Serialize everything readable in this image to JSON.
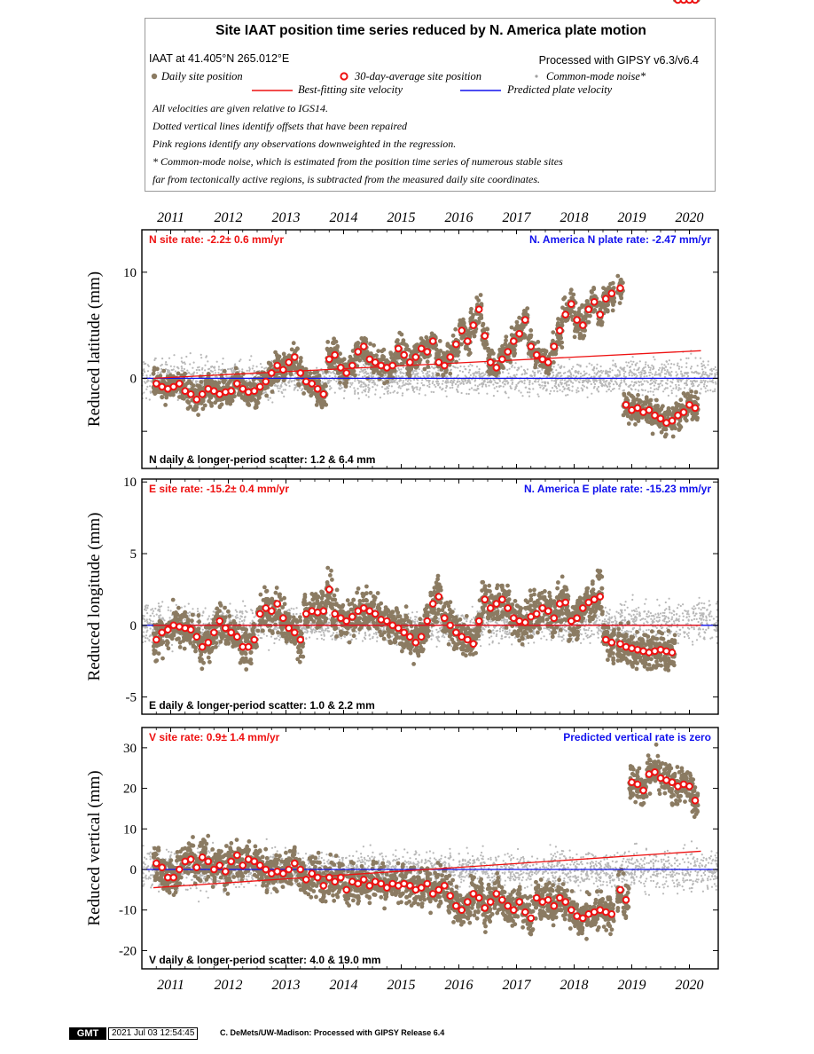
{
  "legend": {
    "title": "Site IAAT position time series reduced by N. America plate motion",
    "location": "IAAT at 41.405°N 265.012°E",
    "processed": "Processed with GIPSY v6.3/v6.4",
    "daily_label": "Daily site position",
    "avg_label": "30-day-average site position",
    "cm_label": "Common-mode noise*",
    "best_label": "Best-fitting site velocity",
    "pred_label": "Predicted plate velocity",
    "note1": "All velocities are given relative to IGS14.",
    "note2": "Dotted vertical lines identify offsets that have been repaired",
    "note3": "Pink regions identify any observations downweighted in the regression.",
    "note4": "* Common-mode noise, which is estimated from the position time series of numerous stable sites",
    "note5": "far from tectonically active regions, is subtracted from the measured daily site coordinates."
  },
  "colors": {
    "daily": "#8b7b62",
    "avg_fill": "#ffffff",
    "avg_edge": "#ee1111",
    "common_mode": "#b8b8b8",
    "best_fit": "#ee1111",
    "plate": "#1111ee",
    "rate_red": "#ee1111",
    "rate_blue": "#1111ee"
  },
  "footer": {
    "logo": "GMT",
    "timestamp": "2021 Jul 03 12:54:45",
    "credit": "C. DeMets/UW-Madison: Processed with GIPSY Release 6.4"
  },
  "chart_data": [
    {
      "type": "scatter",
      "component": "N",
      "ylabel": "Reduced latitude (mm)",
      "xlim": [
        2010.5,
        2020.5
      ],
      "ylim": [
        -8.5,
        14
      ],
      "yticks": [
        -5,
        0,
        10
      ],
      "ytick_labels": [
        "",
        "0",
        "10"
      ],
      "x_ticks": [
        "2011",
        "2012",
        "2013",
        "2014",
        "2015",
        "2016",
        "2017",
        "2018",
        "2019",
        "2020"
      ],
      "site_rate": "N site rate:  -2.2± 0.6 mm/yr",
      "plate_rate": "N. America N plate rate: -2.47 mm/yr",
      "scatter_text": "N daily & longer-period scatter:   1.2 &   6.4 mm",
      "best_fit_line": {
        "x": [
          2010.7,
          2020.2
        ],
        "y": [
          0.0,
          2.6
        ]
      },
      "plate_line": {
        "x": [
          2010.5,
          2020.5
        ],
        "y": [
          0,
          0
        ]
      },
      "avg_x": [
        2010.75,
        2010.85,
        2010.95,
        2011.05,
        2011.15,
        2011.25,
        2011.35,
        2011.45,
        2011.55,
        2011.65,
        2011.75,
        2011.85,
        2011.95,
        2012.05,
        2012.15,
        2012.25,
        2012.35,
        2012.45,
        2012.55,
        2012.65,
        2012.75,
        2012.85,
        2012.95,
        2013.05,
        2013.15,
        2013.25,
        2013.35,
        2013.45,
        2013.55,
        2013.65,
        2013.75,
        2013.85,
        2013.95,
        2014.05,
        2014.15,
        2014.25,
        2014.35,
        2014.45,
        2014.55,
        2014.65,
        2014.75,
        2014.85,
        2014.95,
        2015.05,
        2015.15,
        2015.25,
        2015.35,
        2015.45,
        2015.55,
        2015.65,
        2015.75,
        2015.85,
        2015.95,
        2016.05,
        2016.15,
        2016.25,
        2016.35,
        2016.45,
        2016.55,
        2016.65,
        2016.75,
        2016.85,
        2016.95,
        2017.05,
        2017.15,
        2017.25,
        2017.35,
        2017.45,
        2017.55,
        2017.65,
        2017.75,
        2017.85,
        2017.95,
        2018.05,
        2018.15,
        2018.25,
        2018.35,
        2018.45,
        2018.55,
        2018.65,
        2018.8,
        2018.9,
        2019.0,
        2019.1,
        2019.2,
        2019.3,
        2019.4,
        2019.5,
        2019.6,
        2019.7,
        2019.8,
        2019.9,
        2020.0,
        2020.1
      ],
      "avg_y": [
        -0.5,
        -0.8,
        -1.0,
        -0.8,
        -0.5,
        -1.2,
        -1.5,
        -2.0,
        -1.5,
        -1.0,
        -1.2,
        -1.5,
        -1.3,
        -1.2,
        -0.5,
        -1.0,
        -1.3,
        -1.2,
        -0.8,
        -0.3,
        0.5,
        1.2,
        0.8,
        1.5,
        2.0,
        0.5,
        -0.3,
        -0.5,
        -1.0,
        -1.5,
        1.8,
        2.2,
        1.0,
        0.5,
        1.2,
        2.5,
        3.0,
        1.8,
        1.5,
        1.2,
        1.0,
        1.2,
        2.8,
        2.2,
        1.5,
        2.0,
        2.8,
        2.5,
        3.5,
        1.5,
        1.2,
        2.0,
        3.2,
        4.5,
        3.5,
        5.0,
        6.5,
        4.0,
        1.5,
        1.0,
        1.8,
        2.5,
        3.5,
        4.2,
        5.5,
        3.0,
        2.2,
        1.8,
        1.5,
        3.0,
        4.5,
        6.0,
        7.0,
        5.5,
        5.0,
        6.5,
        7.2,
        6.0,
        7.5,
        8.0,
        8.5,
        -2.5,
        -3.0,
        -2.8,
        -3.2,
        -3.0,
        -3.5,
        -3.8,
        -4.2,
        -4.0,
        -3.5,
        -3.2,
        -2.5,
        -2.8
      ],
      "cm_ranges": [
        {
          "x": [
            2010.5,
            2012.9
          ],
          "center": 0.0,
          "spread": 1.6
        },
        {
          "x": [
            2012.9,
            2018.8
          ],
          "center": 0.0,
          "spread": 1.3
        },
        {
          "x": [
            2018.8,
            2020.5
          ],
          "center": 0.2,
          "spread": 1.5
        }
      ]
    },
    {
      "type": "scatter",
      "component": "E",
      "ylabel": "Reduced longitude (mm)",
      "xlim": [
        2010.5,
        2020.5
      ],
      "ylim": [
        -6.2,
        10.2
      ],
      "yticks": [
        -5,
        0,
        5,
        10
      ],
      "ytick_labels": [
        "-5",
        "0",
        "5",
        "10"
      ],
      "x_ticks": [
        "2011",
        "2012",
        "2013",
        "2014",
        "2015",
        "2016",
        "2017",
        "2018",
        "2019",
        "2020"
      ],
      "site_rate": "E site rate: -15.2± 0.4 mm/yr",
      "plate_rate": "N. America E plate rate: -15.23 mm/yr",
      "scatter_text": "E daily & longer-period scatter:   1.0 &   2.2 mm",
      "best_fit_line": {
        "x": [
          2010.7,
          2020.2
        ],
        "y": [
          0.0,
          0.0
        ]
      },
      "plate_line": {
        "x": [
          2010.5,
          2020.5
        ],
        "y": [
          0,
          0
        ]
      },
      "avg_x": [
        2010.75,
        2010.85,
        2010.95,
        2011.05,
        2011.15,
        2011.25,
        2011.35,
        2011.45,
        2011.55,
        2011.65,
        2011.75,
        2011.85,
        2011.95,
        2012.05,
        2012.15,
        2012.25,
        2012.35,
        2012.45,
        2012.55,
        2012.65,
        2012.75,
        2012.85,
        2012.95,
        2013.05,
        2013.15,
        2013.25,
        2013.35,
        2013.45,
        2013.55,
        2013.65,
        2013.75,
        2013.85,
        2013.95,
        2014.05,
        2014.15,
        2014.25,
        2014.35,
        2014.45,
        2014.55,
        2014.65,
        2014.75,
        2014.85,
        2014.95,
        2015.05,
        2015.15,
        2015.25,
        2015.35,
        2015.45,
        2015.55,
        2015.65,
        2015.75,
        2015.85,
        2015.95,
        2016.05,
        2016.15,
        2016.25,
        2016.35,
        2016.45,
        2016.55,
        2016.65,
        2016.75,
        2016.85,
        2016.95,
        2017.05,
        2017.15,
        2017.25,
        2017.35,
        2017.45,
        2017.55,
        2017.65,
        2017.75,
        2017.85,
        2017.95,
        2018.05,
        2018.15,
        2018.25,
        2018.35,
        2018.45,
        2018.55,
        2018.65,
        2018.8,
        2018.9,
        2019.0,
        2019.1,
        2019.2,
        2019.3,
        2019.4,
        2019.5,
        2019.6,
        2019.7,
        2019.8,
        2019.9,
        2020.0,
        2020.1
      ],
      "avg_y": [
        -1.0,
        -0.5,
        -0.3,
        0.0,
        -0.1,
        -0.2,
        -0.3,
        -0.8,
        -1.5,
        -1.2,
        -0.5,
        0.3,
        -0.2,
        -0.5,
        -0.8,
        -1.5,
        -1.5,
        -1.0,
        0.8,
        1.2,
        1.0,
        1.5,
        0.5,
        -0.2,
        -0.5,
        -1.0,
        0.8,
        1.0,
        0.9,
        1.0,
        2.5,
        0.8,
        0.5,
        0.3,
        0.6,
        1.0,
        1.2,
        1.0,
        0.8,
        0.4,
        0.3,
        0.0,
        -0.2,
        -0.5,
        -0.8,
        -1.2,
        -0.8,
        0.3,
        1.5,
        2.0,
        0.5,
        0.0,
        -0.5,
        -0.8,
        -1.0,
        -1.3,
        0.3,
        1.8,
        1.2,
        1.5,
        1.8,
        1.2,
        0.5,
        0.3,
        0.2,
        0.6,
        0.8,
        1.2,
        1.0,
        0.5,
        1.5,
        1.6,
        0.3,
        0.5,
        1.2,
        1.6,
        1.8,
        2.0,
        -1.0,
        -1.2,
        -1.3,
        -1.5,
        -1.6,
        -1.7,
        -1.8,
        -1.9,
        -1.8,
        -1.7,
        -1.8,
        -1.9
      ],
      "cm_ranges": [
        {
          "x": [
            2010.5,
            2012.9
          ],
          "center": 0.0,
          "spread": 1.3
        },
        {
          "x": [
            2012.9,
            2018.8
          ],
          "center": 0.0,
          "spread": 1.0
        },
        {
          "x": [
            2018.8,
            2020.5
          ],
          "center": 0.2,
          "spread": 1.3
        }
      ]
    },
    {
      "type": "scatter",
      "component": "V",
      "ylabel": "Reduced vertical (mm)",
      "xlim": [
        2010.5,
        2020.5
      ],
      "ylim": [
        -24.5,
        35
      ],
      "yticks": [
        -20,
        -10,
        0,
        10,
        20,
        30
      ],
      "ytick_labels": [
        "-20",
        "-10",
        "0",
        "10",
        "20",
        "30"
      ],
      "x_ticks": [
        "2011",
        "2012",
        "2013",
        "2014",
        "2015",
        "2016",
        "2017",
        "2018",
        "2019",
        "2020"
      ],
      "site_rate": "V site rate:  0.9± 1.4 mm/yr",
      "plate_rate": "Predicted vertical rate is zero",
      "scatter_text": "V daily & longer-period scatter:   4.0 &  19.0 mm",
      "best_fit_line": {
        "x": [
          2010.7,
          2020.2
        ],
        "y": [
          -4.5,
          4.5
        ]
      },
      "plate_line": {
        "x": [
          2010.5,
          2020.5
        ],
        "y": [
          0,
          0
        ]
      },
      "avg_x": [
        2010.75,
        2010.85,
        2010.95,
        2011.05,
        2011.15,
        2011.25,
        2011.35,
        2011.45,
        2011.55,
        2011.65,
        2011.75,
        2011.85,
        2011.95,
        2012.05,
        2012.15,
        2012.25,
        2012.35,
        2012.45,
        2012.55,
        2012.65,
        2012.75,
        2012.85,
        2012.95,
        2013.05,
        2013.15,
        2013.25,
        2013.35,
        2013.45,
        2013.55,
        2013.65,
        2013.75,
        2013.85,
        2013.95,
        2014.05,
        2014.15,
        2014.25,
        2014.35,
        2014.45,
        2014.55,
        2014.65,
        2014.75,
        2014.85,
        2014.95,
        2015.05,
        2015.15,
        2015.25,
        2015.35,
        2015.45,
        2015.55,
        2015.65,
        2015.75,
        2015.85,
        2015.95,
        2016.05,
        2016.15,
        2016.25,
        2016.35,
        2016.45,
        2016.55,
        2016.65,
        2016.75,
        2016.85,
        2016.95,
        2017.05,
        2017.15,
        2017.25,
        2017.35,
        2017.45,
        2017.55,
        2017.65,
        2017.75,
        2017.85,
        2017.95,
        2018.05,
        2018.15,
        2018.25,
        2018.35,
        2018.45,
        2018.55,
        2018.65,
        2018.8,
        2018.9,
        2019.0,
        2019.1,
        2019.2,
        2019.3,
        2019.4,
        2019.5,
        2019.6,
        2019.7,
        2019.8,
        2019.9,
        2020.0,
        2020.1
      ],
      "avg_y": [
        1.5,
        0.5,
        -2.0,
        -2.0,
        0.0,
        2.0,
        2.5,
        0.5,
        3.0,
        2.0,
        0.0,
        1.0,
        -0.5,
        2.0,
        3.5,
        1.0,
        2.5,
        2.0,
        1.0,
        0.0,
        -1.0,
        -0.5,
        -1.0,
        0.0,
        1.5,
        0.0,
        -2.5,
        -1.0,
        -2.0,
        -4.0,
        -2.0,
        -3.0,
        -2.0,
        -5.0,
        -3.0,
        -3.5,
        -2.5,
        -4.0,
        -3.0,
        -3.5,
        -4.5,
        -3.5,
        -4.0,
        -3.5,
        -4.0,
        -5.0,
        -4.5,
        -3.5,
        -6.0,
        -5.0,
        -4.0,
        -6.5,
        -9.0,
        -10.0,
        -8.0,
        -6.0,
        -7.0,
        -9.5,
        -8.0,
        -6.0,
        -7.5,
        -9.0,
        -10.0,
        -8.0,
        -10.5,
        -12.0,
        -7.0,
        -8.0,
        -7.5,
        -9.0,
        -7.0,
        -8.0,
        -10.0,
        -11.5,
        -12.0,
        -11.0,
        -10.5,
        -10.0,
        -10.5,
        -11.0,
        -5.0,
        -7.5,
        21.5,
        21.0,
        19.5,
        23.5,
        24.0,
        22.5,
        22.0,
        21.5,
        20.5,
        21.0,
        20.5,
        17.0
      ],
      "cm_ranges": [
        {
          "x": [
            2010.5,
            2012.9
          ],
          "center": 0.0,
          "spread": 4.5
        },
        {
          "x": [
            2012.9,
            2018.8
          ],
          "center": 0.0,
          "spread": 3.8
        },
        {
          "x": [
            2018.8,
            2020.5
          ],
          "center": 0.0,
          "spread": 4.5
        }
      ]
    }
  ]
}
